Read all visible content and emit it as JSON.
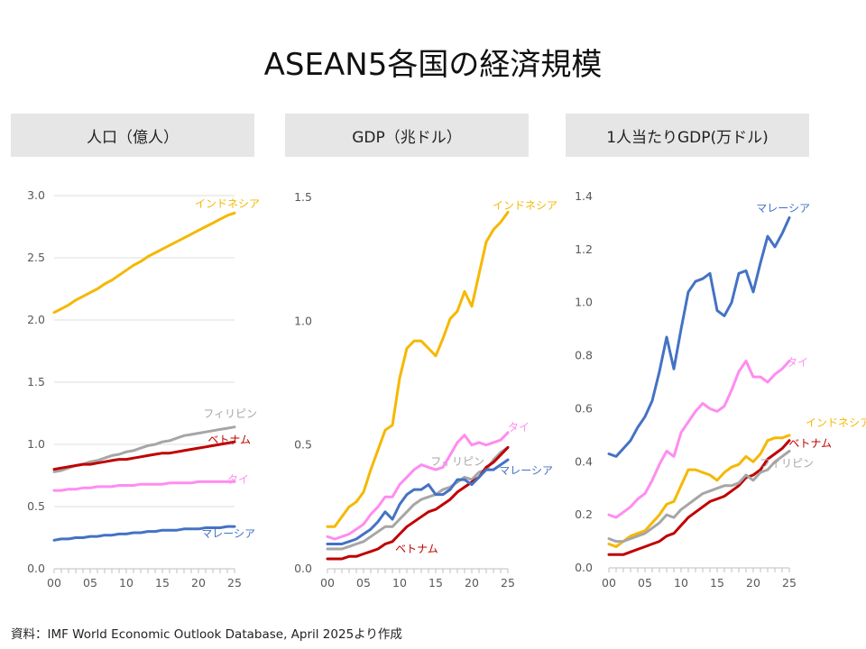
{
  "title": "ASEAN5各国の経済規模",
  "source": "資料：IMF  World Economic Outlook Database, April 2025より作成",
  "colors": {
    "indonesia": "#f5b800",
    "philippines": "#a6a6a6",
    "vietnam": "#c00000",
    "thailand": "#ff8cf0",
    "malaysia": "#4472c4",
    "grid": "#dcdcdc",
    "axis": "#bfbfbf"
  },
  "chart_data": [
    {
      "type": "line",
      "title": "人口（億人）",
      "x": [
        0,
        1,
        2,
        3,
        4,
        5,
        6,
        7,
        8,
        9,
        10,
        11,
        12,
        13,
        14,
        15,
        16,
        17,
        18,
        19,
        20,
        21,
        22,
        23,
        24,
        25
      ],
      "x_tick_labels": [
        "00",
        "05",
        "10",
        "15",
        "20",
        "25"
      ],
      "ylim": [
        0,
        3.0
      ],
      "y_ticks": [
        "0.0",
        "0.5",
        "1.0",
        "1.5",
        "2.0",
        "2.5",
        "3.0"
      ],
      "grid": true,
      "series": [
        {
          "name": "インドネシア",
          "color_key": "indonesia",
          "values": [
            2.06,
            2.09,
            2.12,
            2.16,
            2.19,
            2.22,
            2.25,
            2.29,
            2.32,
            2.36,
            2.4,
            2.44,
            2.47,
            2.51,
            2.54,
            2.57,
            2.6,
            2.63,
            2.66,
            2.69,
            2.72,
            2.75,
            2.78,
            2.81,
            2.84,
            2.86
          ]
        },
        {
          "name": "フィリピン",
          "color_key": "philippines",
          "values": [
            0.78,
            0.79,
            0.81,
            0.83,
            0.84,
            0.86,
            0.87,
            0.89,
            0.91,
            0.92,
            0.94,
            0.95,
            0.97,
            0.99,
            1.0,
            1.02,
            1.03,
            1.05,
            1.07,
            1.08,
            1.09,
            1.1,
            1.11,
            1.12,
            1.13,
            1.14
          ]
        },
        {
          "name": "ベトナム",
          "color_key": "vietnam",
          "values": [
            0.8,
            0.81,
            0.82,
            0.83,
            0.84,
            0.84,
            0.85,
            0.86,
            0.87,
            0.88,
            0.88,
            0.89,
            0.9,
            0.91,
            0.92,
            0.93,
            0.93,
            0.94,
            0.95,
            0.96,
            0.97,
            0.98,
            0.99,
            1.0,
            1.01,
            1.02
          ]
        },
        {
          "name": "タイ",
          "color_key": "thailand",
          "values": [
            0.63,
            0.63,
            0.64,
            0.64,
            0.65,
            0.65,
            0.66,
            0.66,
            0.66,
            0.67,
            0.67,
            0.67,
            0.68,
            0.68,
            0.68,
            0.68,
            0.69,
            0.69,
            0.69,
            0.69,
            0.7,
            0.7,
            0.7,
            0.7,
            0.7,
            0.7
          ]
        },
        {
          "name": "マレーシア",
          "color_key": "malaysia",
          "values": [
            0.23,
            0.24,
            0.24,
            0.25,
            0.25,
            0.26,
            0.26,
            0.27,
            0.27,
            0.28,
            0.28,
            0.29,
            0.29,
            0.3,
            0.3,
            0.31,
            0.31,
            0.31,
            0.32,
            0.32,
            0.32,
            0.33,
            0.33,
            0.33,
            0.34,
            0.34
          ]
        }
      ]
    },
    {
      "type": "line",
      "title": "GDP（兆ドル）",
      "x": [
        0,
        1,
        2,
        3,
        4,
        5,
        6,
        7,
        8,
        9,
        10,
        11,
        12,
        13,
        14,
        15,
        16,
        17,
        18,
        19,
        20,
        21,
        22,
        23,
        24,
        25
      ],
      "x_tick_labels": [
        "00",
        "05",
        "10",
        "15",
        "20",
        "25"
      ],
      "ylim": [
        0,
        1.5
      ],
      "y_ticks": [
        "0.0",
        "0.5",
        "1.0",
        "1.5"
      ],
      "grid": false,
      "series": [
        {
          "name": "インドネシア",
          "color_key": "indonesia",
          "values": [
            0.17,
            0.17,
            0.21,
            0.25,
            0.27,
            0.31,
            0.4,
            0.48,
            0.56,
            0.58,
            0.77,
            0.89,
            0.92,
            0.92,
            0.89,
            0.86,
            0.93,
            1.01,
            1.04,
            1.12,
            1.06,
            1.19,
            1.32,
            1.37,
            1.4,
            1.44
          ]
        },
        {
          "name": "フィリピン",
          "color_key": "philippines",
          "values": [
            0.08,
            0.08,
            0.08,
            0.09,
            0.1,
            0.11,
            0.13,
            0.15,
            0.17,
            0.17,
            0.2,
            0.23,
            0.26,
            0.28,
            0.29,
            0.3,
            0.32,
            0.33,
            0.35,
            0.37,
            0.36,
            0.39,
            0.4,
            0.44,
            0.47,
            0.49
          ]
        },
        {
          "name": "ベトナム",
          "color_key": "vietnam",
          "values": [
            0.04,
            0.04,
            0.04,
            0.05,
            0.05,
            0.06,
            0.07,
            0.08,
            0.1,
            0.11,
            0.14,
            0.17,
            0.19,
            0.21,
            0.23,
            0.24,
            0.26,
            0.28,
            0.31,
            0.33,
            0.35,
            0.37,
            0.41,
            0.43,
            0.46,
            0.49
          ]
        },
        {
          "name": "タイ",
          "color_key": "thailand",
          "values": [
            0.13,
            0.12,
            0.13,
            0.14,
            0.16,
            0.18,
            0.22,
            0.25,
            0.29,
            0.29,
            0.34,
            0.37,
            0.4,
            0.42,
            0.41,
            0.4,
            0.41,
            0.46,
            0.51,
            0.54,
            0.5,
            0.51,
            0.5,
            0.51,
            0.52,
            0.55
          ]
        },
        {
          "name": "マレーシア",
          "color_key": "malaysia",
          "values": [
            0.1,
            0.1,
            0.1,
            0.11,
            0.12,
            0.14,
            0.16,
            0.19,
            0.23,
            0.2,
            0.26,
            0.3,
            0.32,
            0.32,
            0.34,
            0.3,
            0.3,
            0.32,
            0.36,
            0.36,
            0.34,
            0.37,
            0.4,
            0.4,
            0.42,
            0.44
          ]
        }
      ]
    },
    {
      "type": "line",
      "title": "1人当たりGDP(万ドル)",
      "x": [
        0,
        1,
        2,
        3,
        4,
        5,
        6,
        7,
        8,
        9,
        10,
        11,
        12,
        13,
        14,
        15,
        16,
        17,
        18,
        19,
        20,
        21,
        22,
        23,
        24,
        25
      ],
      "x_tick_labels": [
        "00",
        "05",
        "10",
        "15",
        "20",
        "25"
      ],
      "ylim": [
        0,
        1.4
      ],
      "y_ticks": [
        "0.0",
        "0.2",
        "0.4",
        "0.6",
        "0.8",
        "1.0",
        "1.2",
        "1.4"
      ],
      "grid": false,
      "series": [
        {
          "name": "マレーシア",
          "color_key": "malaysia",
          "values": [
            0.43,
            0.42,
            0.45,
            0.48,
            0.53,
            0.57,
            0.63,
            0.74,
            0.87,
            0.75,
            0.9,
            1.04,
            1.08,
            1.09,
            1.11,
            0.97,
            0.95,
            1.0,
            1.11,
            1.12,
            1.04,
            1.15,
            1.25,
            1.21,
            1.26,
            1.32
          ]
        },
        {
          "name": "タイ",
          "color_key": "thailand",
          "values": [
            0.2,
            0.19,
            0.21,
            0.23,
            0.26,
            0.28,
            0.33,
            0.39,
            0.44,
            0.42,
            0.51,
            0.55,
            0.59,
            0.62,
            0.6,
            0.59,
            0.61,
            0.67,
            0.74,
            0.78,
            0.72,
            0.72,
            0.7,
            0.73,
            0.75,
            0.78
          ]
        },
        {
          "name": "インドネシア",
          "color_key": "indonesia",
          "values": [
            0.09,
            0.08,
            0.1,
            0.12,
            0.13,
            0.14,
            0.17,
            0.2,
            0.24,
            0.25,
            0.31,
            0.37,
            0.37,
            0.36,
            0.35,
            0.33,
            0.36,
            0.38,
            0.39,
            0.42,
            0.4,
            0.43,
            0.48,
            0.49,
            0.49,
            0.5
          ]
        },
        {
          "name": "ベトナム",
          "color_key": "vietnam",
          "values": [
            0.05,
            0.05,
            0.05,
            0.06,
            0.07,
            0.08,
            0.09,
            0.1,
            0.12,
            0.13,
            0.16,
            0.19,
            0.21,
            0.23,
            0.25,
            0.26,
            0.27,
            0.29,
            0.31,
            0.34,
            0.35,
            0.37,
            0.41,
            0.43,
            0.45,
            0.48
          ]
        },
        {
          "name": "フィリピン",
          "color_key": "philippines",
          "values": [
            0.11,
            0.1,
            0.1,
            0.11,
            0.12,
            0.13,
            0.15,
            0.17,
            0.2,
            0.19,
            0.22,
            0.24,
            0.26,
            0.28,
            0.29,
            0.3,
            0.31,
            0.31,
            0.32,
            0.35,
            0.33,
            0.36,
            0.37,
            0.4,
            0.42,
            0.44
          ]
        }
      ]
    }
  ]
}
